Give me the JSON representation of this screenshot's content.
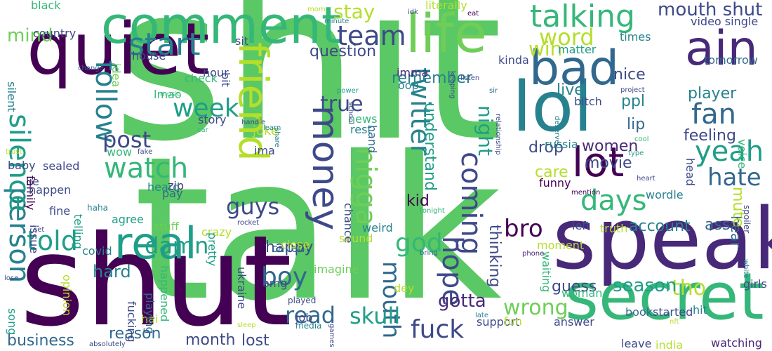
{
  "wordcloud": {
    "background": "#ffffff",
    "palette": [
      "#440154",
      "#482878",
      "#3e4989",
      "#31688e",
      "#26828e",
      "#1f9e89",
      "#35b779",
      "#6ece58",
      "#b5de2b",
      "#fde725"
    ],
    "words": [
      {
        "text": "shit",
        "color": "#5ac864"
      },
      {
        "text": "talk",
        "color": "#5ac864"
      },
      {
        "text": "shut",
        "color": "#440154"
      },
      {
        "text": "speak",
        "color": "#482878"
      },
      {
        "text": "secret",
        "color": "#35b779"
      },
      {
        "text": "quiet",
        "color": "#440154"
      },
      {
        "text": "lol",
        "color": "#26828e"
      },
      {
        "text": "life",
        "color": "#6ece58"
      },
      {
        "text": "comment",
        "color": "#35b779"
      },
      {
        "text": "real",
        "color": "#1f9e89"
      },
      {
        "text": "bad",
        "color": "#31688e"
      },
      {
        "text": "ain",
        "color": "#482878"
      },
      {
        "text": "friend",
        "color": "#b5de2b"
      },
      {
        "text": "money",
        "color": "#3e4989"
      },
      {
        "text": "lot",
        "color": "#440154"
      },
      {
        "text": "person",
        "color": "#26828e"
      },
      {
        "text": "silence",
        "color": "#1f9e89"
      },
      {
        "text": "talking",
        "color": "#35b779"
      },
      {
        "text": "start",
        "color": "#26828e"
      },
      {
        "text": "watch",
        "color": "#35b779"
      },
      {
        "text": "week",
        "color": "#1f9e89"
      },
      {
        "text": "team",
        "color": "#3e4989"
      },
      {
        "text": "word",
        "color": "#b5de2b"
      },
      {
        "text": "fan",
        "color": "#31688e"
      },
      {
        "text": "yeah",
        "color": "#1f9e89"
      },
      {
        "text": "hate",
        "color": "#31688e"
      },
      {
        "text": "days",
        "color": "#35b779"
      },
      {
        "text": "twitter",
        "color": "#26828e"
      },
      {
        "text": "coming",
        "color": "#3e4989"
      },
      {
        "text": "nigga",
        "color": "#6ece58"
      },
      {
        "text": "told",
        "color": "#1f9e89"
      },
      {
        "text": "follow",
        "color": "#26828e"
      },
      {
        "text": "post",
        "color": "#3e4989"
      },
      {
        "text": "fuck",
        "color": "#3e4989"
      },
      {
        "text": "boy",
        "color": "#31688e"
      },
      {
        "text": "god",
        "color": "#35b779"
      },
      {
        "text": "hope",
        "color": "#3e4989"
      },
      {
        "text": "mouth shut",
        "color": "#3e4989"
      },
      {
        "text": "mouth",
        "color": "#31688e"
      },
      {
        "text": "bro",
        "color": "#440154"
      },
      {
        "text": "tho",
        "color": "#b5de2b"
      },
      {
        "text": "guys",
        "color": "#3e4989"
      },
      {
        "text": "damn",
        "color": "#1f9e89"
      },
      {
        "text": "read",
        "color": "#31688e"
      },
      {
        "text": "skull",
        "color": "#1f9e89"
      },
      {
        "text": "wrong",
        "color": "#6ece58"
      },
      {
        "text": "season",
        "color": "#1f9e89"
      },
      {
        "text": "account",
        "color": "#26828e"
      },
      {
        "text": "hear",
        "color": "#31688e"
      },
      {
        "text": "true",
        "color": "#3e4989"
      },
      {
        "text": "night",
        "color": "#1f9e89"
      },
      {
        "text": "mind",
        "color": "#6ece58"
      },
      {
        "text": "stay",
        "color": "#b5de2b"
      },
      {
        "text": "win",
        "color": "#b5de2b"
      },
      {
        "text": "player",
        "color": "#26828e"
      },
      {
        "text": "feeling",
        "color": "#3e4989"
      },
      {
        "text": "ppl",
        "color": "#26828e"
      },
      {
        "text": "hard",
        "color": "#26828e"
      },
      {
        "text": "happy",
        "color": "#3e4989"
      },
      {
        "text": "gotta",
        "color": "#482878"
      },
      {
        "text": "guess",
        "color": "#3e4989"
      },
      {
        "text": "business",
        "color": "#31688e"
      },
      {
        "text": "reason",
        "color": "#31688e"
      },
      {
        "text": "month",
        "color": "#3e4989"
      },
      {
        "text": "lost",
        "color": "#3e4989"
      },
      {
        "text": "kid",
        "color": "#440154"
      },
      {
        "text": "drop",
        "color": "#3e4989"
      },
      {
        "text": "women",
        "color": "#482878"
      },
      {
        "text": "live",
        "color": "#26828e"
      },
      {
        "text": "care",
        "color": "#b5de2b"
      },
      {
        "text": "movie",
        "color": "#3e4989"
      },
      {
        "text": "lip",
        "color": "#31688e"
      },
      {
        "text": "ass",
        "color": "#31688e"
      },
      {
        "text": "mute",
        "color": "#b5de2b"
      },
      {
        "text": "thinking",
        "color": "#3e4989"
      },
      {
        "text": "understand",
        "color": "#1f9e89"
      },
      {
        "text": "question",
        "color": "#3e4989"
      },
      {
        "text": "remember",
        "color": "#26828e"
      },
      {
        "text": "nice",
        "color": "#3e4989"
      },
      {
        "text": "country",
        "color": "#3e4989"
      },
      {
        "text": "silent",
        "color": "#26828e"
      },
      {
        "text": "black",
        "color": "#35b779"
      },
      {
        "text": "literally",
        "color": "#b5de2b"
      },
      {
        "text": "video single",
        "color": "#3e4989"
      },
      {
        "text": "times",
        "color": "#26828e"
      },
      {
        "text": "tomorrow",
        "color": "#31688e"
      },
      {
        "text": "matter",
        "color": "#1f9e89"
      },
      {
        "text": "kinda",
        "color": "#3e4989"
      },
      {
        "text": "imma",
        "color": "#482878"
      },
      {
        "text": "oop",
        "color": "#26828e"
      },
      {
        "text": "bitch",
        "color": "#3e4989"
      },
      {
        "text": "joke",
        "color": "#b5de2b"
      },
      {
        "text": "ima",
        "color": "#3e4989"
      },
      {
        "text": "story",
        "color": "#3e4989"
      },
      {
        "text": "news",
        "color": "#35b779"
      },
      {
        "text": "rest",
        "color": "#26828e"
      },
      {
        "text": "hand",
        "color": "#31688e"
      },
      {
        "text": "wow",
        "color": "#35b779"
      },
      {
        "text": "baby",
        "color": "#3e4989"
      },
      {
        "text": "sealed",
        "color": "#3e4989"
      },
      {
        "text": "lie",
        "color": "#3e4989"
      },
      {
        "text": "family",
        "color": "#440154"
      },
      {
        "text": "happen",
        "color": "#3e4989"
      },
      {
        "text": "zip",
        "color": "#482878"
      },
      {
        "text": "pay",
        "color": "#31688e"
      },
      {
        "text": "heard",
        "color": "#26828e"
      },
      {
        "text": "stuff",
        "color": "#6ece58"
      },
      {
        "text": "agree",
        "color": "#1f9e89"
      },
      {
        "text": "crazy",
        "color": "#b5de2b"
      },
      {
        "text": "covid",
        "color": "#26828e"
      },
      {
        "text": "pretty",
        "color": "#1f9e89"
      },
      {
        "text": "war",
        "color": "#440154"
      },
      {
        "text": "ukraine",
        "color": "#3e4989"
      },
      {
        "text": "called",
        "color": "#31688e"
      },
      {
        "text": "imagine",
        "color": "#6ece58"
      },
      {
        "text": "omg",
        "color": "#3e4989"
      },
      {
        "text": "close",
        "color": "#b5de2b"
      },
      {
        "text": "sound",
        "color": "#b5de2b"
      },
      {
        "text": "dey",
        "color": "#b5de2b"
      },
      {
        "text": "weird",
        "color": "#26828e"
      },
      {
        "text": "truth",
        "color": "#b5de2b"
      },
      {
        "text": "left",
        "color": "#3e4989"
      },
      {
        "text": "moment",
        "color": "#b5de2b"
      },
      {
        "text": "woman",
        "color": "#35b779"
      },
      {
        "text": "waiting",
        "color": "#35b779"
      },
      {
        "text": "book",
        "color": "#31688e"
      },
      {
        "text": "started",
        "color": "#3e4989"
      },
      {
        "text": "girls",
        "color": "#3e4989"
      },
      {
        "text": "hit",
        "color": "#26828e"
      },
      {
        "text": "watching",
        "color": "#482878"
      },
      {
        "text": "leave",
        "color": "#3e4989"
      },
      {
        "text": "india",
        "color": "#b5de2b"
      },
      {
        "text": "answer",
        "color": "#3e4989"
      },
      {
        "text": "support",
        "color": "#3e4989"
      },
      {
        "text": "fun",
        "color": "#b5de2b"
      },
      {
        "text": "job",
        "color": "#3e4989"
      },
      {
        "text": "played",
        "color": "#3e4989"
      },
      {
        "text": "media",
        "color": "#26828e"
      },
      {
        "text": "hai",
        "color": "#b5de2b"
      },
      {
        "text": "song",
        "color": "#1f9e89"
      },
      {
        "text": "opinion",
        "color": "#b5de2b"
      },
      {
        "text": "fucking",
        "color": "#3e4989"
      },
      {
        "text": "playing",
        "color": "#31688e"
      },
      {
        "text": "happened",
        "color": "#35b779"
      },
      {
        "text": "funny",
        "color": "#440154"
      },
      {
        "text": "russia",
        "color": "#26828e"
      },
      {
        "text": "mention",
        "color": "#440154"
      },
      {
        "text": "phone",
        "color": "#482878"
      },
      {
        "text": "bring",
        "color": "#31688e"
      },
      {
        "text": "tonight",
        "color": "#35b779"
      },
      {
        "text": "wordle",
        "color": "#26828e"
      },
      {
        "text": "fine",
        "color": "#3e4989"
      },
      {
        "text": "telling",
        "color": "#1f9e89"
      },
      {
        "text": "haha",
        "color": "#26828e"
      },
      {
        "text": "issue",
        "color": "#3e4989"
      },
      {
        "text": "set",
        "color": "#3e4989"
      },
      {
        "text": "lose",
        "color": "#3e4989"
      },
      {
        "text": "trust",
        "color": "#b5de2b"
      },
      {
        "text": "house",
        "color": "#3e4989"
      },
      {
        "text": "check",
        "color": "#35b779"
      },
      {
        "text": "bit",
        "color": "#3e4989"
      },
      {
        "text": "hour",
        "color": "#3e4989"
      },
      {
        "text": "sit",
        "color": "#3e4989"
      },
      {
        "text": "lmao",
        "color": "#35b779"
      },
      {
        "text": "music",
        "color": "#35b779"
      },
      {
        "text": "idea",
        "color": "#6ece58"
      },
      {
        "text": "change",
        "color": "#31688e"
      },
      {
        "text": "car",
        "color": "#35b779"
      },
      {
        "text": "handle",
        "color": "#3e4989"
      },
      {
        "text": "learn",
        "color": "#26828e"
      },
      {
        "text": "share",
        "color": "#26828e"
      },
      {
        "text": "fake",
        "color": "#3e4989"
      },
      {
        "text": "rocket",
        "color": "#3e4989"
      },
      {
        "text": "chance",
        "color": "#3e4989"
      },
      {
        "text": "school",
        "color": "#3e4989"
      },
      {
        "text": "power",
        "color": "#1f9e89"
      },
      {
        "text": "keeping",
        "color": "#3e4989"
      },
      {
        "text": "relationship",
        "color": "#3e4989"
      },
      {
        "text": "sir",
        "color": "#31688e"
      },
      {
        "text": "listen",
        "color": "#3e4989"
      },
      {
        "text": "deserve",
        "color": "#26828e"
      },
      {
        "text": "project",
        "color": "#3e4989"
      },
      {
        "text": "cool",
        "color": "#35b779"
      },
      {
        "text": "type",
        "color": "#1f9e89"
      },
      {
        "text": "voice",
        "color": "#35b779"
      },
      {
        "text": "head",
        "color": "#3e4989"
      },
      {
        "text": "heart",
        "color": "#3e4989"
      },
      {
        "text": "eat",
        "color": "#440154"
      },
      {
        "text": "spoiler",
        "color": "#3e4989"
      },
      {
        "text": "white",
        "color": "#26828e"
      },
      {
        "text": "sleep",
        "color": "#b5de2b"
      },
      {
        "text": "games",
        "color": "#3e4989"
      },
      {
        "text": "late",
        "color": "#26828e"
      },
      {
        "text": "nft",
        "color": "#b5de2b"
      },
      {
        "text": "idk",
        "color": "#3e4989"
      },
      {
        "text": "mom",
        "color": "#b5de2b"
      },
      {
        "text": "minute",
        "color": "#26828e"
      },
      {
        "text": "absolutely",
        "color": "#3e4989"
      },
      {
        "text": "speechless",
        "color": "#26828e"
      }
    ]
  }
}
